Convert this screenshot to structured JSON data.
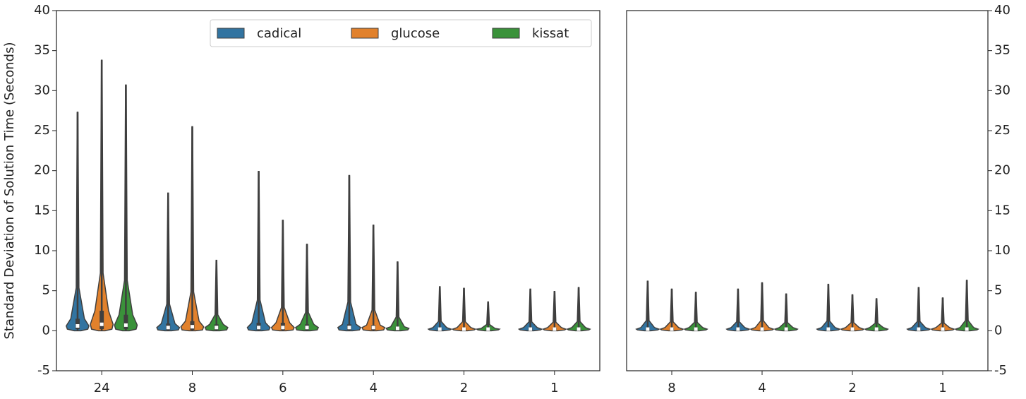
{
  "chart_data": [
    {
      "type": "violin",
      "y_label": "Standard Deviation of Solution Time (Seconds)",
      "categories": [
        "24",
        "8",
        "6",
        "4",
        "2",
        "1"
      ],
      "ylim": [
        -5,
        40
      ],
      "yticks": [
        -5,
        0,
        5,
        10,
        15,
        20,
        25,
        30,
        35,
        40
      ],
      "y_axis_side": "left",
      "legend": "upper right",
      "series": [
        {
          "name": "cadical",
          "color": "#3274a1",
          "max": [
            27.3,
            17.2,
            19.9,
            19.4,
            5.5,
            5.2
          ],
          "q3": [
            1.5,
            0.9,
            1.0,
            0.8,
            0.4,
            0.4
          ],
          "median": [
            0.6,
            0.4,
            0.4,
            0.4,
            0.2,
            0.2
          ],
          "q1": [
            0.2,
            0.1,
            0.1,
            0.1,
            0.1,
            0.1
          ],
          "min": [
            0,
            0,
            0,
            0,
            0,
            0
          ]
        },
        {
          "name": "glucose",
          "color": "#e1812c",
          "max": [
            33.8,
            25.5,
            13.8,
            13.2,
            5.3,
            4.9
          ],
          "q3": [
            2.5,
            1.2,
            1.0,
            0.7,
            0.4,
            0.4
          ],
          "median": [
            0.8,
            0.5,
            0.4,
            0.4,
            0.2,
            0.2
          ],
          "q1": [
            0.2,
            0.1,
            0.1,
            0.1,
            0.1,
            0.1
          ],
          "min": [
            0,
            0,
            0,
            0,
            0,
            0
          ]
        },
        {
          "name": "kissat",
          "color": "#3a923a",
          "max": [
            30.7,
            8.8,
            10.8,
            8.6,
            3.6,
            5.4
          ],
          "q3": [
            2.0,
            0.8,
            0.8,
            0.5,
            0.3,
            0.4
          ],
          "median": [
            0.7,
            0.4,
            0.4,
            0.3,
            0.2,
            0.2
          ],
          "q1": [
            0.2,
            0.1,
            0.1,
            0.1,
            0.1,
            0.1
          ],
          "min": [
            0,
            0,
            0,
            0,
            0,
            0
          ]
        }
      ]
    },
    {
      "type": "violin",
      "categories": [
        "8",
        "4",
        "2",
        "1"
      ],
      "ylim": [
        -5,
        40
      ],
      "yticks": [
        -5,
        0,
        5,
        10,
        15,
        20,
        25,
        30,
        35,
        40
      ],
      "y_axis_side": "right",
      "series": [
        {
          "color": "#3274a1",
          "max": [
            6.2,
            5.2,
            5.8,
            5.4
          ],
          "q3": [
            0.4,
            0.4,
            0.4,
            0.4
          ],
          "median": [
            0.2,
            0.2,
            0.2,
            0.2
          ],
          "q1": [
            0.1,
            0.1,
            0.1,
            0.1
          ],
          "min": [
            0,
            0,
            0,
            0
          ]
        },
        {
          "color": "#e1812c",
          "max": [
            5.2,
            6.0,
            4.5,
            4.1
          ],
          "q3": [
            0.4,
            0.4,
            0.4,
            0.4
          ],
          "median": [
            0.2,
            0.2,
            0.2,
            0.2
          ],
          "q1": [
            0.1,
            0.1,
            0.1,
            0.1
          ],
          "min": [
            0,
            0,
            0,
            0
          ]
        },
        {
          "color": "#3a923a",
          "max": [
            4.8,
            4.6,
            4.0,
            6.3
          ],
          "q3": [
            0.4,
            0.4,
            0.4,
            0.4
          ],
          "median": [
            0.2,
            0.2,
            0.2,
            0.2
          ],
          "q1": [
            0.1,
            0.1,
            0.1,
            0.1
          ],
          "min": [
            0,
            0,
            0,
            0
          ]
        }
      ]
    }
  ]
}
